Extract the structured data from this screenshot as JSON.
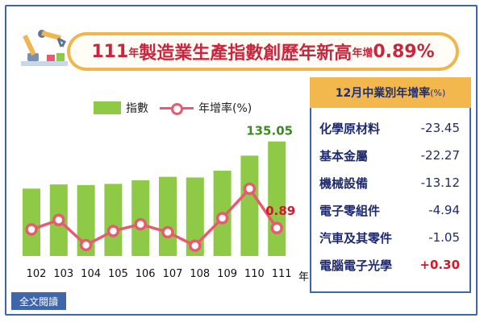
{
  "title": {
    "part1": "111",
    "part2": "年",
    "part3": "製造業生產指數創歷年新高",
    "part4": "年增",
    "part5": "0.89%"
  },
  "legend": {
    "index_label": "指數",
    "rate_label": "年增率(%)"
  },
  "x_suffix": "年",
  "highlight_labels": {
    "index_last": "135.05",
    "rate_last": "0.89"
  },
  "side_panel": {
    "header": "12月中業別年增率",
    "header_unit": "(%)",
    "rows": [
      {
        "name": "化學原材料",
        "value": "-23.45"
      },
      {
        "name": "基本金屬",
        "value": "-22.27"
      },
      {
        "name": "機械設備",
        "value": "-13.12"
      },
      {
        "name": "電子零組件",
        "value": "-4.94"
      },
      {
        "name": "汽車及其零件",
        "value": "-1.05"
      },
      {
        "name": "電腦電子光學",
        "value": "+0.30"
      }
    ]
  },
  "fulltext_button": "全文閱讀",
  "colors": {
    "bar": "#8fca46",
    "line": "#e65b6f",
    "accent": "#3f66a8",
    "title_red": "#c8263e",
    "positive": "#d01a2a"
  },
  "chart_data": {
    "type": "bar",
    "categories": [
      "102",
      "103",
      "104",
      "105",
      "106",
      "107",
      "108",
      "109",
      "110",
      "111"
    ],
    "series": [
      {
        "name": "指數",
        "type": "bar",
        "values": [
          85.6,
          90.0,
          89.4,
          90.6,
          94.4,
          98.0,
          97.3,
          104.4,
          120.2,
          135.05
        ]
      },
      {
        "name": "年增率(%)",
        "type": "line",
        "values": [
          0.65,
          2.2,
          -1.9,
          0.4,
          1.5,
          0.2,
          -2.0,
          2.5,
          7.3,
          0.89
        ]
      }
    ]
  }
}
